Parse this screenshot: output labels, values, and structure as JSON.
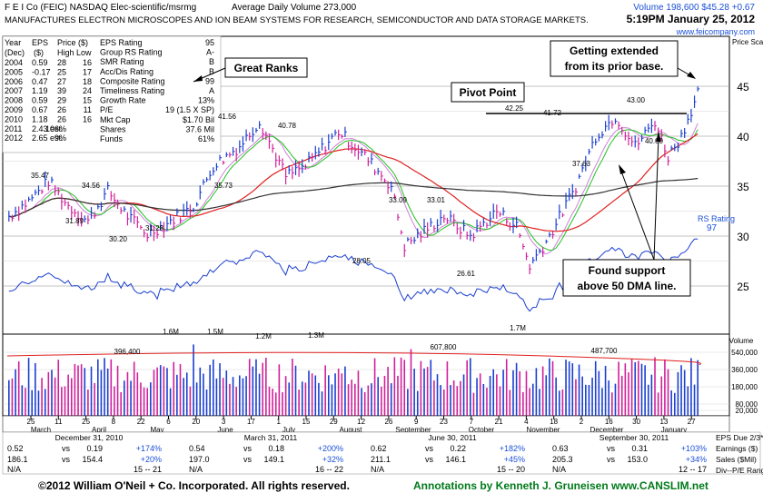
{
  "header": {
    "title": "F E I Co  (FEIC)  NASDAQ  Elec-scientific/msrmg",
    "avg_volume": "Average Daily Volume 273,000",
    "description": "MANUFACTURES ELECTRON MICROSCOPES AND ION BEAM SYSTEMS FOR  RESEARCH, SEMICONDUCTOR AND DATA STORAGE MARKETS.",
    "volume_price": "Volume 198,600  $45.28  +0.67",
    "datetime": "5:19PM January 25, 2012",
    "website": "www.feicompany.com"
  },
  "fundamentals": {
    "headers": [
      "Year",
      "EPS",
      "Price ($)",
      "(Dec)",
      "($)",
      "High Low"
    ],
    "rows": [
      {
        "year": "2004",
        "eps": "0.59",
        "high": "28",
        "low": "16"
      },
      {
        "year": "2005",
        "eps": "-0.17",
        "high": "25",
        "low": "17",
        "eps_arrow": "down"
      },
      {
        "year": "2006",
        "eps": "0.47",
        "high": "27",
        "low": "18",
        "eps_arrow": "up"
      },
      {
        "year": "2007",
        "eps": "1.19",
        "high": "39",
        "low": "24",
        "eps_arrow": "up"
      },
      {
        "year": "2008",
        "eps": "0.59",
        "high": "29",
        "low": "15"
      },
      {
        "year": "2009",
        "eps": "0.67",
        "high": "26",
        "low": "11"
      },
      {
        "year": "2010",
        "eps": "1.18",
        "high": "26",
        "low": "16",
        "eps_arrow": "up"
      },
      {
        "year": "2011",
        "eps": "2.43 est.",
        "high": "106%",
        "low": ""
      },
      {
        "year": "2012",
        "eps": "2.65 est.",
        "high": "9%",
        "low": ""
      }
    ]
  },
  "ratings": [
    {
      "label": "EPS Rating",
      "value": "95"
    },
    {
      "label": "Group RS Rating",
      "value": "A-"
    },
    {
      "label": "SMR Rating",
      "value": "B"
    },
    {
      "label": "Acc/Dis Rating",
      "value": "B"
    },
    {
      "label": "Composite Rating",
      "value": "99"
    },
    {
      "label": "Timeliness Rating",
      "value": "A"
    },
    {
      "label": "Growth Rate",
      "value": "13%"
    },
    {
      "label": "P/E",
      "value": "19 (1.5 X SP)"
    },
    {
      "label": "Mkt Cap",
      "value": "$1.70 Bil"
    },
    {
      "label": "Shares",
      "value": "37.6 Mil"
    },
    {
      "label": "Funds",
      "value": "61%"
    }
  ],
  "annotations": {
    "great_ranks": "Great Ranks",
    "pivot_point": "Pivot Point",
    "extended": [
      "Getting extended",
      "from its prior base."
    ],
    "support": [
      "Found support",
      "above 50 DMA line."
    ]
  },
  "chart_data": {
    "type": "bar",
    "price_axis": {
      "label": "Price Scale",
      "ticks": [
        25,
        30,
        35,
        40,
        45
      ],
      "scale": "log"
    },
    "volume_axis": {
      "label": "Volume",
      "ticks": [
        "540,000",
        "360,000",
        "180,000",
        "80,000",
        "20,000"
      ]
    },
    "price_labels": [
      "35.47",
      "31.89",
      "34.56",
      "30.20",
      "31.28",
      "41.56",
      "35.73",
      "40.78",
      "33.09",
      "28.05",
      "33.01",
      "26.61",
      "42.25",
      "41.72",
      "37.63",
      "43.00",
      "40.00"
    ],
    "volume_labels": [
      "396,400",
      "1.6M",
      "1.5M",
      "1.2M",
      "1.3M",
      "607,800",
      "487,700",
      "1.7M"
    ],
    "rs_rating": {
      "label": "RS Rating",
      "value": "97"
    },
    "months": [
      "March",
      "April",
      "May",
      "June",
      "July",
      "August",
      "September",
      "October",
      "November",
      "December",
      "January"
    ],
    "x_dates": [
      "25",
      "11",
      "25",
      "8",
      "22",
      "6",
      "20",
      "3",
      "17",
      "1",
      "15",
      "29",
      "12",
      "26",
      "9",
      "23",
      "7",
      "21",
      "4",
      "18",
      "2",
      "16",
      "30",
      "13",
      "27"
    ],
    "earnings_blocks": [
      {
        "period": "December 31, 2010",
        "eps": "0.52",
        "eps_prior": "0.19",
        "eps_pct": "+174%",
        "sales": "186.1",
        "sales_prior": "154.4",
        "sales_pct": "+20%",
        "pe": "15 -- 21"
      },
      {
        "period": "March 31, 2011",
        "eps": "0.54",
        "eps_prior": "0.18",
        "eps_pct": "+200%",
        "sales": "197.0",
        "sales_prior": "149.1",
        "sales_pct": "+32%",
        "pe": "16 -- 22"
      },
      {
        "period": "June 30, 2011",
        "eps": "0.62",
        "eps_prior": "0.22",
        "eps_pct": "+182%",
        "sales": "211.1",
        "sales_prior": "146.1",
        "sales_pct": "+45%",
        "pe": "15 -- 20"
      },
      {
        "period": "September 30, 2011",
        "eps": "0.63",
        "eps_prior": "0.31",
        "eps_pct": "+103%",
        "sales": "205.3",
        "sales_prior": "153.0",
        "sales_pct": "+34%",
        "pe": "12 -- 17"
      }
    ],
    "eps_due": "EPS Due 2/3*",
    "side_labels": [
      "Earnings ($)",
      "Sales ($Mil)",
      "Div--P/E Range"
    ],
    "na": "N/A",
    "vs": "vs"
  },
  "footer": {
    "copyright": "©2012 William O'Neil + Co. Incorporated. All rights reserved.",
    "annotations_by": "Annotations by Kenneth J. Gruneisen  www.CANSLIM.net"
  }
}
